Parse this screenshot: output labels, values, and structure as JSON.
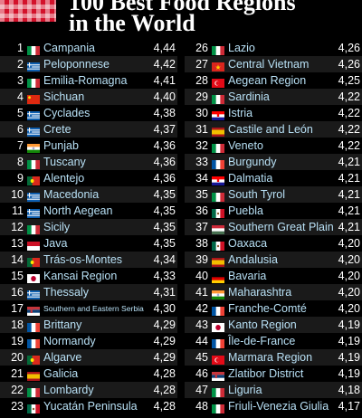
{
  "header": {
    "title_line1": "100 Best Food Regions",
    "title_line2": "in the World"
  },
  "colors": {
    "background": "#000000",
    "region_name": "#b8e0f5",
    "logo_red": "#d3122b"
  },
  "left_column": [
    {
      "rank": "1",
      "name": "Campania",
      "score": "4,44",
      "flag": "italy"
    },
    {
      "rank": "2",
      "name": "Peloponnese",
      "score": "4,42",
      "flag": "greece"
    },
    {
      "rank": "3",
      "name": "Emilia-Romagna",
      "score": "4,41",
      "flag": "italy"
    },
    {
      "rank": "4",
      "name": "Sichuan",
      "score": "4,40",
      "flag": "china"
    },
    {
      "rank": "5",
      "name": "Cyclades",
      "score": "4,38",
      "flag": "greece"
    },
    {
      "rank": "6",
      "name": "Crete",
      "score": "4,37",
      "flag": "greece"
    },
    {
      "rank": "7",
      "name": "Punjab",
      "score": "4,36",
      "flag": "india"
    },
    {
      "rank": "8",
      "name": "Tuscany",
      "score": "4,36",
      "flag": "italy"
    },
    {
      "rank": "9",
      "name": "Alentejo",
      "score": "4,36",
      "flag": "portugal"
    },
    {
      "rank": "10",
      "name": "Macedonia",
      "score": "4,35",
      "flag": "greece"
    },
    {
      "rank": "11",
      "name": "North Aegean",
      "score": "4,35",
      "flag": "greece"
    },
    {
      "rank": "12",
      "name": "Sicily",
      "score": "4,35",
      "flag": "italy"
    },
    {
      "rank": "13",
      "name": "Java",
      "score": "4,35",
      "flag": "indonesia"
    },
    {
      "rank": "14",
      "name": "Trás-os-Montes",
      "score": "4,34",
      "flag": "portugal"
    },
    {
      "rank": "15",
      "name": "Kansai Region",
      "score": "4,33",
      "flag": "japan"
    },
    {
      "rank": "16",
      "name": "Thessaly",
      "score": "4,31",
      "flag": "greece"
    },
    {
      "rank": "17",
      "name": "Southern and Eastern Serbia",
      "score": "4,30",
      "flag": "serbia",
      "small": true
    },
    {
      "rank": "18",
      "name": "Brittany",
      "score": "4,29",
      "flag": "france"
    },
    {
      "rank": "19",
      "name": "Normandy",
      "score": "4,29",
      "flag": "france"
    },
    {
      "rank": "20",
      "name": "Algarve",
      "score": "4,29",
      "flag": "portugal"
    },
    {
      "rank": "21",
      "name": "Galicia",
      "score": "4,28",
      "flag": "spain"
    },
    {
      "rank": "22",
      "name": "Lombardy",
      "score": "4,28",
      "flag": "italy"
    },
    {
      "rank": "23",
      "name": "Yucatán Peninsula",
      "score": "4,28",
      "flag": "mexico"
    }
  ],
  "right_column": [
    {
      "rank": "26",
      "name": "Lazio",
      "score": "4,26",
      "flag": "italy"
    },
    {
      "rank": "27",
      "name": "Central Vietnam",
      "score": "4,26",
      "flag": "vietnam"
    },
    {
      "rank": "28",
      "name": "Aegean Region",
      "score": "4,25",
      "flag": "turkey"
    },
    {
      "rank": "29",
      "name": "Sardinia",
      "score": "4,22",
      "flag": "italy"
    },
    {
      "rank": "30",
      "name": "Istria",
      "score": "4,22",
      "flag": "croatia"
    },
    {
      "rank": "31",
      "name": "Castile and León",
      "score": "4,22",
      "flag": "spain"
    },
    {
      "rank": "32",
      "name": "Veneto",
      "score": "4,22",
      "flag": "italy"
    },
    {
      "rank": "33",
      "name": "Burgundy",
      "score": "4,21",
      "flag": "france"
    },
    {
      "rank": "34",
      "name": "Dalmatia",
      "score": "4,21",
      "flag": "croatia"
    },
    {
      "rank": "35",
      "name": "South Tyrol",
      "score": "4,21",
      "flag": "italy"
    },
    {
      "rank": "36",
      "name": "Puebla",
      "score": "4,21",
      "flag": "mexico"
    },
    {
      "rank": "37",
      "name": "Southern Great Plain",
      "score": "4,21",
      "flag": "hungary"
    },
    {
      "rank": "38",
      "name": "Oaxaca",
      "score": "4,20",
      "flag": "mexico"
    },
    {
      "rank": "39",
      "name": "Andalusia",
      "score": "4,20",
      "flag": "spain"
    },
    {
      "rank": "40",
      "name": "Bavaria",
      "score": "4,20",
      "flag": "germany"
    },
    {
      "rank": "41",
      "name": "Maharashtra",
      "score": "4,20",
      "flag": "india"
    },
    {
      "rank": "42",
      "name": "Franche-Comté",
      "score": "4,20",
      "flag": "france"
    },
    {
      "rank": "43",
      "name": "Kanto Region",
      "score": "4,19",
      "flag": "japan"
    },
    {
      "rank": "44",
      "name": "Île-de-France",
      "score": "4,19",
      "flag": "france"
    },
    {
      "rank": "45",
      "name": "Marmara Region",
      "score": "4,19",
      "flag": "turkey"
    },
    {
      "rank": "46",
      "name": "Zlatibor District",
      "score": "4,19",
      "flag": "serbia"
    },
    {
      "rank": "47",
      "name": "Liguria",
      "score": "4,18",
      "flag": "italy"
    },
    {
      "rank": "48",
      "name": "Friuli-Venezia Giulia",
      "score": "4,17",
      "flag": "italy"
    }
  ]
}
